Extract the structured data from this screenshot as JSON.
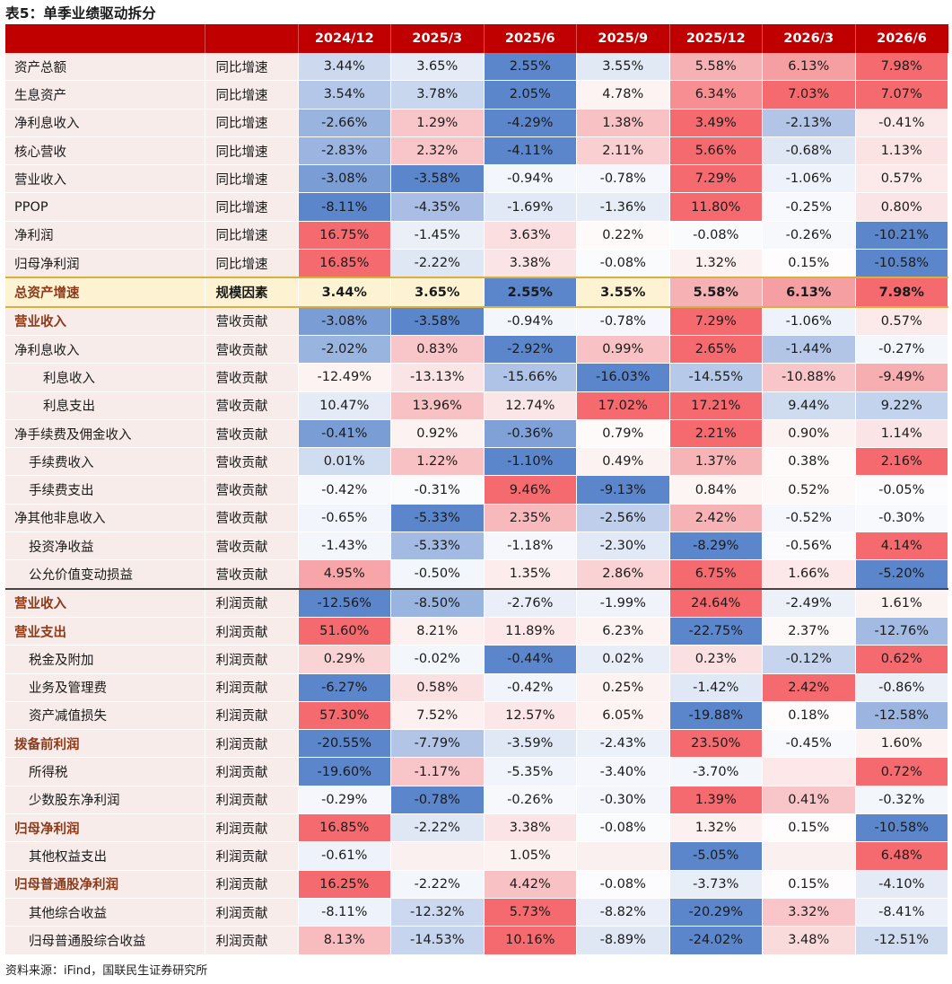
{
  "title": "表5：单季业绩驱动拆分",
  "source": "资料来源：iFind，国联民生证券研究所",
  "headers": [
    "2024/12",
    "2025/3",
    "2025/6",
    "2025/9",
    "2025/12",
    "2026/3",
    "2026/6"
  ],
  "rows": [
    {
      "name": "资产总额",
      "dim": "同比增速",
      "indent": 0,
      "style": "normal",
      "values": [
        "3.44%",
        "3.65%",
        "2.55%",
        "3.55%",
        "5.58%",
        "6.13%",
        "7.98%"
      ],
      "colors": [
        "#cdd9ee",
        "#e6ecf7",
        "#5b86cb",
        "#e1e9f5",
        "#f6b1b4",
        "#f59fa3",
        "#f56a6f"
      ]
    },
    {
      "name": "生息资产",
      "dim": "同比增速",
      "indent": 0,
      "style": "normal",
      "values": [
        "3.54%",
        "3.78%",
        "2.05%",
        "4.78%",
        "6.34%",
        "7.03%",
        "7.07%"
      ],
      "colors": [
        "#b4c7e8",
        "#c8d6ee",
        "#5b86cb",
        "#fdf3f3",
        "#f68e92",
        "#f56a6f",
        "#f56a6f"
      ]
    },
    {
      "name": "净利息收入",
      "dim": "同比增速",
      "indent": 0,
      "style": "normal",
      "values": [
        "-2.66%",
        "1.29%",
        "-4.29%",
        "1.38%",
        "3.49%",
        "-2.13%",
        "-0.41%"
      ],
      "colors": [
        "#9ab4e0",
        "#f8c6c9",
        "#5b86cb",
        "#f8c1c4",
        "#f56a6f",
        "#b2c5e7",
        "#fbe9ea"
      ]
    },
    {
      "name": "核心营收",
      "dim": "同比增速",
      "indent": 0,
      "style": "normal",
      "values": [
        "-2.83%",
        "2.32%",
        "-4.11%",
        "2.11%",
        "5.66%",
        "-0.68%",
        "1.13%"
      ],
      "colors": [
        "#9bb5e0",
        "#f8c6c9",
        "#5b86cb",
        "#f9cfd1",
        "#f56a6f",
        "#dfe7f5",
        "#fbe2e3"
      ]
    },
    {
      "name": "营业收入",
      "dim": "同比增速",
      "indent": 0,
      "style": "normal",
      "values": [
        "-3.08%",
        "-3.58%",
        "-0.94%",
        "-0.78%",
        "7.29%",
        "-1.06%",
        "0.57%"
      ],
      "colors": [
        "#7a9dd6",
        "#5b86cb",
        "#f3f6fb",
        "#f5f7fc",
        "#f56a6f",
        "#eef2fa",
        "#fceaeb"
      ]
    },
    {
      "name": "PPOP",
      "dim": "同比增速",
      "indent": 0,
      "style": "normal",
      "values": [
        "-8.11%",
        "-4.35%",
        "-1.69%",
        "-1.36%",
        "11.80%",
        "-0.25%",
        "0.80%"
      ],
      "colors": [
        "#5b86cb",
        "#aabee5",
        "#e2e9f6",
        "#e7edf7",
        "#f56a6f",
        "#f8f9fd",
        "#fbe4e5"
      ]
    },
    {
      "name": "净利润",
      "dim": "同比增速",
      "indent": 0,
      "style": "normal",
      "values": [
        "16.75%",
        "-1.45%",
        "3.63%",
        "0.22%",
        "-0.08%",
        "-0.26%",
        "-10.21%"
      ],
      "colors": [
        "#f56a6f",
        "#eaeff8",
        "#fbdfe0",
        "#fefafa",
        "#fafbfd",
        "#f6f8fc",
        "#5b86cb"
      ]
    },
    {
      "name": "归母净利润",
      "dim": "同比增速",
      "indent": 0,
      "style": "normal",
      "values": [
        "16.85%",
        "-2.22%",
        "3.38%",
        "-0.08%",
        "1.32%",
        "0.15%",
        "-10.58%"
      ],
      "colors": [
        "#f56a6f",
        "#dfe7f5",
        "#fbe4e5",
        "#fafbfd",
        "#fcf0f0",
        "#fefcfc",
        "#5b86cb"
      ]
    },
    {
      "name": "总资产增速",
      "dim": "规模因素",
      "indent": 0,
      "style": "highlight",
      "values": [
        "3.44%",
        "3.65%",
        "2.55%",
        "3.55%",
        "5.58%",
        "6.13%",
        "7.98%"
      ],
      "colors": [
        "#fdf3d2",
        "#fdf3d2",
        "#5b86cb",
        "#fdf3d2",
        "#f6b1b4",
        "#f59fa3",
        "#f56a6f"
      ]
    },
    {
      "name": "营业收入",
      "dim": "营收贡献",
      "indent": 0,
      "style": "bold",
      "values": [
        "-3.08%",
        "-3.58%",
        "-0.94%",
        "-0.78%",
        "7.29%",
        "-1.06%",
        "0.57%"
      ],
      "colors": [
        "#7a9dd6",
        "#5b86cb",
        "#f3f6fb",
        "#f5f7fc",
        "#f56a6f",
        "#eef2fa",
        "#fceaeb"
      ]
    },
    {
      "name": "净利息收入",
      "dim": "营收贡献",
      "indent": 0,
      "style": "normal",
      "values": [
        "-2.02%",
        "0.83%",
        "-2.92%",
        "0.99%",
        "2.65%",
        "-1.44%",
        "-0.27%"
      ],
      "colors": [
        "#9ab4e0",
        "#f8c6c9",
        "#5b86cb",
        "#f8c1c4",
        "#f56a6f",
        "#b2c5e7",
        "#f3f6fb"
      ]
    },
    {
      "name": "利息收入",
      "dim": "营收贡献",
      "indent": 2,
      "style": "normal",
      "values": [
        "-12.49%",
        "-13.13%",
        "-15.66%",
        "-16.03%",
        "-14.55%",
        "-10.88%",
        "-9.49%"
      ],
      "colors": [
        "#fdf3f3",
        "#fbe4e5",
        "#aec3e6",
        "#5b86cb",
        "#b7c9e9",
        "#f8c6c9",
        "#f6aeb1"
      ]
    },
    {
      "name": "利息支出",
      "dim": "营收贡献",
      "indent": 2,
      "style": "normal",
      "values": [
        "10.47%",
        "13.96%",
        "12.74%",
        "17.02%",
        "17.21%",
        "9.44%",
        "9.22%"
      ],
      "colors": [
        "#e4ebf6",
        "#f8c1c4",
        "#fbe6e7",
        "#f56a6f",
        "#f56a6f",
        "#cfdcf0",
        "#c3d3ed"
      ]
    },
    {
      "name": "净手续费及佣金收入",
      "dim": "营收贡献",
      "indent": 0,
      "style": "normal",
      "values": [
        "-0.41%",
        "0.92%",
        "-0.36%",
        "0.79%",
        "2.21%",
        "0.90%",
        "1.14%"
      ],
      "colors": [
        "#7a9dd6",
        "#fdf2f2",
        "#7fa1d8",
        "#fefafa",
        "#f56a6f",
        "#fdf2f2",
        "#fbe4e5"
      ]
    },
    {
      "name": "手续费收入",
      "dim": "营收贡献",
      "indent": 1,
      "style": "normal",
      "values": [
        "0.01%",
        "1.22%",
        "-1.10%",
        "0.49%",
        "1.37%",
        "0.38%",
        "2.16%"
      ],
      "colors": [
        "#d0dcf0",
        "#f8c1c4",
        "#5b86cb",
        "#fdf2f2",
        "#f7b4b7",
        "#fefafa",
        "#f56a6f"
      ]
    },
    {
      "name": "手续费支出",
      "dim": "营收贡献",
      "indent": 1,
      "style": "normal",
      "values": [
        "-0.42%",
        "-0.31%",
        "9.46%",
        "-9.13%",
        "0.84%",
        "0.52%",
        "-0.05%"
      ],
      "colors": [
        "#f8f9fd",
        "#fafbfd",
        "#f56a6f",
        "#5b86cb",
        "#fdf4f4",
        "#fef9f9",
        "#fcfcfe"
      ]
    },
    {
      "name": "净其他非息收入",
      "dim": "营收贡献",
      "indent": 0,
      "style": "normal",
      "values": [
        "-0.65%",
        "-5.33%",
        "2.35%",
        "-2.56%",
        "2.42%",
        "-0.52%",
        "-0.30%"
      ],
      "colors": [
        "#f2f5fb",
        "#5b86cb",
        "#f8b9bc",
        "#bfcfeb",
        "#f7b2b5",
        "#f5f7fc",
        "#f8f9fd"
      ]
    },
    {
      "name": "投资净收益",
      "dim": "营收贡献",
      "indent": 1,
      "style": "normal",
      "values": [
        "-1.43%",
        "-5.33%",
        "-1.18%",
        "-2.30%",
        "-8.29%",
        "-0.56%",
        "4.14%"
      ],
      "colors": [
        "#f3f6fb",
        "#a3bbe3",
        "#f5f7fc",
        "#e2e9f6",
        "#5b86cb",
        "#fbfbfd",
        "#f56a6f"
      ]
    },
    {
      "name": "公允价值变动损益",
      "dim": "营收贡献",
      "indent": 1,
      "style": "normal",
      "values": [
        "4.95%",
        "-0.50%",
        "1.35%",
        "2.86%",
        "6.75%",
        "1.66%",
        "-5.20%"
      ],
      "colors": [
        "#f7a5a9",
        "#f3f6fb",
        "#fcecec",
        "#fad2d4",
        "#f56a6f",
        "#fce8e9",
        "#5b86cb"
      ]
    },
    {
      "name": "营业收入",
      "dim": "利润贡献",
      "indent": 0,
      "style": "bold",
      "values": [
        "-12.56%",
        "-8.50%",
        "-2.76%",
        "-1.99%",
        "24.64%",
        "-2.49%",
        "1.61%"
      ],
      "colors": [
        "#5b86cb",
        "#9ab4e0",
        "#e9eef8",
        "#f0f3fa",
        "#f56a6f",
        "#ebf0f9",
        "#fdf2f2"
      ]
    },
    {
      "name": "营业支出",
      "dim": "利润贡献",
      "indent": 0,
      "style": "bold",
      "values": [
        "51.60%",
        "8.21%",
        "11.89%",
        "6.23%",
        "-22.75%",
        "2.37%",
        "-12.76%"
      ],
      "colors": [
        "#f56a6f",
        "#fdf0f0",
        "#fde8e9",
        "#fdf3f3",
        "#5b86cb",
        "#fef9f9",
        "#a3bbe3"
      ]
    },
    {
      "name": "税金及附加",
      "dim": "利润贡献",
      "indent": 1,
      "style": "normal",
      "values": [
        "0.29%",
        "-0.02%",
        "-0.44%",
        "0.02%",
        "0.23%",
        "-0.12%",
        "0.62%"
      ],
      "colors": [
        "#fad3d5",
        "#f3f6fb",
        "#5b86cb",
        "#e8eef8",
        "#fbe0e1",
        "#c6d4ed",
        "#f56a6f"
      ]
    },
    {
      "name": "业务及管理费",
      "dim": "利润贡献",
      "indent": 1,
      "style": "normal",
      "values": [
        "-6.27%",
        "0.58%",
        "-0.42%",
        "0.25%",
        "-1.42%",
        "2.42%",
        "-0.86%"
      ],
      "colors": [
        "#5b86cb",
        "#fbe0e1",
        "#f1f4fa",
        "#fdf2f2",
        "#e1e8f5",
        "#f56a6f",
        "#eaeff8"
      ]
    },
    {
      "name": "资产减值损失",
      "dim": "利润贡献",
      "indent": 1,
      "style": "normal",
      "values": [
        "57.30%",
        "7.52%",
        "12.57%",
        "6.05%",
        "-19.88%",
        "0.18%",
        "-12.58%"
      ],
      "colors": [
        "#f56a6f",
        "#fdf0f0",
        "#fde6e7",
        "#fdf3f3",
        "#5b86cb",
        "#fefcfc",
        "#9bb5e0"
      ]
    },
    {
      "name": "拨备前利润",
      "dim": "利润贡献",
      "indent": 0,
      "style": "bold",
      "values": [
        "-20.55%",
        "-7.79%",
        "-3.59%",
        "-2.43%",
        "23.50%",
        "-0.45%",
        "1.60%"
      ],
      "colors": [
        "#5b86cb",
        "#b2c5e7",
        "#e0e8f5",
        "#ebf0f9",
        "#f56a6f",
        "#f8f9fd",
        "#fdf2f2"
      ]
    },
    {
      "name": "所得税",
      "dim": "利润贡献",
      "indent": 1,
      "style": "normal",
      "values": [
        "-19.60%",
        "-1.17%",
        "-5.35%",
        "-3.40%",
        "-3.70%",
        "",
        "0.72%"
      ],
      "colors": [
        "#5b86cb",
        "#f8c6c9",
        "#f1f4fa",
        "#f5f7fc",
        "#f3f6fb",
        "#fce8e9",
        "#f56a6f"
      ]
    },
    {
      "name": "少数股东净利润",
      "dim": "利润贡献",
      "indent": 1,
      "style": "normal",
      "values": [
        "-0.29%",
        "-0.78%",
        "-0.26%",
        "-0.30%",
        "1.39%",
        "0.41%",
        "-0.32%"
      ],
      "colors": [
        "#f5f7fc",
        "#5b86cb",
        "#f6f8fc",
        "#f4f6fb",
        "#f56a6f",
        "#f8c6c9",
        "#f3f6fb"
      ]
    },
    {
      "name": "归母净利润",
      "dim": "利润贡献",
      "indent": 0,
      "style": "bold",
      "values": [
        "16.85%",
        "-2.22%",
        "3.38%",
        "-0.08%",
        "1.32%",
        "0.15%",
        "-10.58%"
      ],
      "colors": [
        "#f56a6f",
        "#dfe7f5",
        "#fbe4e5",
        "#fafbfd",
        "#fcf0f0",
        "#fefcfc",
        "#5b86cb"
      ]
    },
    {
      "name": "其他权益支出",
      "dim": "利润贡献",
      "indent": 1,
      "style": "normal",
      "values": [
        "-0.61%",
        "",
        "1.05%",
        "",
        "-5.05%",
        "",
        "6.48%"
      ],
      "colors": [
        "#eef2fa",
        "#fbf0f0",
        "#fdf2f2",
        "#fbf0f0",
        "#5b86cb",
        "#fbf0f0",
        "#f56a6f"
      ]
    },
    {
      "name": "归母普通股净利润",
      "dim": "利润贡献",
      "indent": 0,
      "style": "bold",
      "values": [
        "16.25%",
        "-2.22%",
        "4.42%",
        "-0.08%",
        "-3.73%",
        "0.15%",
        "-4.10%"
      ],
      "colors": [
        "#f56a6f",
        "#f3f6fb",
        "#f8c1c4",
        "#fcfcfe",
        "#e8eef8",
        "#fefcfc",
        "#e5ebf6"
      ]
    },
    {
      "name": "其他综合收益",
      "dim": "利润贡献",
      "indent": 1,
      "style": "normal",
      "values": [
        "-8.11%",
        "-12.32%",
        "5.73%",
        "-8.82%",
        "-20.29%",
        "3.32%",
        "-8.41%"
      ],
      "colors": [
        "#eef2fa",
        "#cbd8ef",
        "#f56a6f",
        "#e9eef8",
        "#5b86cb",
        "#f9c5c8",
        "#ecf0f9"
      ]
    },
    {
      "name": "归母普通股综合收益",
      "dim": "利润贡献",
      "indent": 1,
      "style": "normal",
      "values": [
        "8.13%",
        "-14.53%",
        "10.16%",
        "-8.89%",
        "-24.02%",
        "3.48%",
        "-12.51%"
      ],
      "colors": [
        "#f8bcbf",
        "#c6d4ed",
        "#f56a6f",
        "#dfe7f5",
        "#5b86cb",
        "#fadbdc",
        "#cfdcf0"
      ]
    }
  ]
}
